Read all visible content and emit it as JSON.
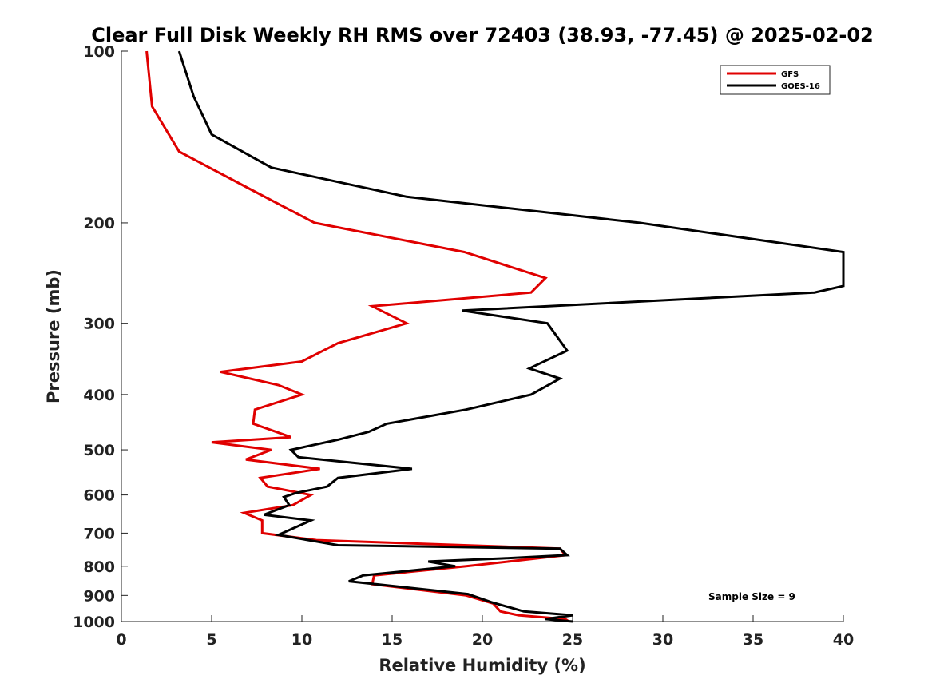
{
  "chart_data": {
    "type": "line",
    "title": "Clear Full Disk Weekly RH RMS over 72403 (38.93, -77.45) @ 2025-02-02",
    "xlabel": "Relative Humidity (%)",
    "ylabel": "Pressure (mb)",
    "xlim": [
      0,
      40
    ],
    "ylim": [
      1000,
      100
    ],
    "yscale": "log",
    "x_ticks": [
      "0",
      "5",
      "10",
      "15",
      "20",
      "25",
      "30",
      "35",
      "40"
    ],
    "y_ticks": [
      "100",
      "200",
      "300",
      "400",
      "500",
      "600",
      "700",
      "800",
      "900",
      "1000"
    ],
    "grid": false,
    "legend_position": "top-right",
    "annotation": "Sample Size = 9",
    "series": [
      {
        "name": "GFS",
        "color": "#e00000",
        "points": [
          [
            1.4,
            100
          ],
          [
            1.7,
            125
          ],
          [
            3.2,
            150
          ],
          [
            7.2,
            175
          ],
          [
            10.7,
            200
          ],
          [
            19.0,
            225
          ],
          [
            23.5,
            250
          ],
          [
            22.7,
            265
          ],
          [
            13.9,
            280
          ],
          [
            15.8,
            300
          ],
          [
            12.0,
            325
          ],
          [
            10.0,
            350
          ],
          [
            5.5,
            365
          ],
          [
            8.7,
            385
          ],
          [
            10.0,
            400
          ],
          [
            7.4,
            425
          ],
          [
            7.3,
            450
          ],
          [
            9.4,
            475
          ],
          [
            5.0,
            485
          ],
          [
            8.3,
            500
          ],
          [
            6.9,
            520
          ],
          [
            11.0,
            540
          ],
          [
            7.7,
            560
          ],
          [
            8.1,
            580
          ],
          [
            10.5,
            600
          ],
          [
            9.5,
            625
          ],
          [
            6.8,
            645
          ],
          [
            7.8,
            665
          ],
          [
            7.8,
            700
          ],
          [
            10.8,
            720
          ],
          [
            24.3,
            745
          ],
          [
            24.6,
            765
          ],
          [
            19.1,
            800
          ],
          [
            14.0,
            830
          ],
          [
            13.9,
            860
          ],
          [
            19.1,
            900
          ],
          [
            20.6,
            930
          ],
          [
            21.0,
            960
          ],
          [
            22.0,
            975
          ],
          [
            24.6,
            990
          ],
          [
            24.8,
            1000
          ]
        ]
      },
      {
        "name": "GOES-16",
        "color": "#000000",
        "points": [
          [
            3.2,
            100
          ],
          [
            4.0,
            120
          ],
          [
            5.0,
            140
          ],
          [
            8.3,
            160
          ],
          [
            15.8,
            180
          ],
          [
            28.7,
            200
          ],
          [
            40.0,
            225
          ],
          [
            40.0,
            258
          ],
          [
            38.4,
            265
          ],
          [
            18.9,
            285
          ],
          [
            23.6,
            300
          ],
          [
            24.7,
            335
          ],
          [
            22.6,
            360
          ],
          [
            24.3,
            375
          ],
          [
            22.7,
            400
          ],
          [
            19.1,
            425
          ],
          [
            14.7,
            450
          ],
          [
            13.7,
            465
          ],
          [
            12.0,
            480
          ],
          [
            9.4,
            500
          ],
          [
            9.8,
            515
          ],
          [
            16.1,
            540
          ],
          [
            12.0,
            560
          ],
          [
            11.4,
            580
          ],
          [
            9.7,
            595
          ],
          [
            9.0,
            605
          ],
          [
            9.3,
            625
          ],
          [
            7.9,
            650
          ],
          [
            10.5,
            665
          ],
          [
            8.7,
            705
          ],
          [
            12.0,
            735
          ],
          [
            24.3,
            745
          ],
          [
            24.7,
            765
          ],
          [
            21.1,
            775
          ],
          [
            17.0,
            785
          ],
          [
            18.5,
            800
          ],
          [
            13.4,
            830
          ],
          [
            12.6,
            850
          ],
          [
            19.2,
            895
          ],
          [
            20.5,
            925
          ],
          [
            22.3,
            960
          ],
          [
            25.0,
            975
          ],
          [
            23.5,
            990
          ],
          [
            25.0,
            1000
          ]
        ]
      }
    ]
  }
}
